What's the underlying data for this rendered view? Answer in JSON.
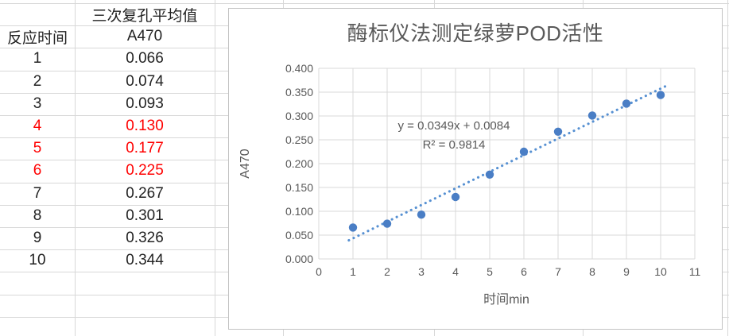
{
  "table": {
    "rows": [
      {
        "time": "",
        "a470": "三次复孔平均值",
        "red": false
      },
      {
        "time": "反应时间",
        "a470": "A470",
        "red": false
      },
      {
        "time": "1",
        "a470": "0.066",
        "red": false
      },
      {
        "time": "2",
        "a470": "0.074",
        "red": false
      },
      {
        "time": "3",
        "a470": "0.093",
        "red": false
      },
      {
        "time": "4",
        "a470": "0.130",
        "red": true
      },
      {
        "time": "5",
        "a470": "0.177",
        "red": true
      },
      {
        "time": "6",
        "a470": "0.225",
        "red": true
      },
      {
        "time": "7",
        "a470": "0.267",
        "red": false
      },
      {
        "time": "8",
        "a470": "0.301",
        "red": false
      },
      {
        "time": "9",
        "a470": "0.326",
        "red": false
      },
      {
        "time": "10",
        "a470": "0.344",
        "red": false
      },
      {
        "time": "",
        "a470": "",
        "red": false
      },
      {
        "time": "",
        "a470": "",
        "red": false
      },
      {
        "time": "",
        "a470": "",
        "red": false
      }
    ],
    "red_color": "#ff0000",
    "text_color": "#222222"
  },
  "chart_data": {
    "type": "scatter",
    "title": "酶标仪法测定绿萝POD活性",
    "xlabel": "时间min",
    "ylabel": "A470",
    "x": [
      1,
      2,
      3,
      4,
      5,
      6,
      7,
      8,
      9,
      10
    ],
    "y": [
      0.066,
      0.074,
      0.093,
      0.13,
      0.177,
      0.225,
      0.267,
      0.301,
      0.326,
      0.344
    ],
    "xlim": [
      0,
      11
    ],
    "ylim": [
      0,
      0.4
    ],
    "x_tick_labels": [
      "0",
      "1",
      "2",
      "3",
      "4",
      "5",
      "6",
      "7",
      "8",
      "9",
      "10",
      "11"
    ],
    "y_tick_labels": [
      "0.000",
      "0.050",
      "0.100",
      "0.150",
      "0.200",
      "0.250",
      "0.300",
      "0.350",
      "0.400"
    ],
    "grid": true,
    "legend": false,
    "trendline": {
      "slope": 0.0349,
      "intercept": 0.0084,
      "equation": "y = 0.0349x + 0.0084",
      "r_squared": "R² = 0.9814",
      "x_start": 0.88,
      "x_end": 10.15,
      "style": "dotted"
    },
    "colors": {
      "point": "#4A7EC5",
      "trendline": "#5690D2",
      "grid": "#d9d9d9",
      "text": "#595959",
      "border": "#c3c3c3"
    }
  }
}
